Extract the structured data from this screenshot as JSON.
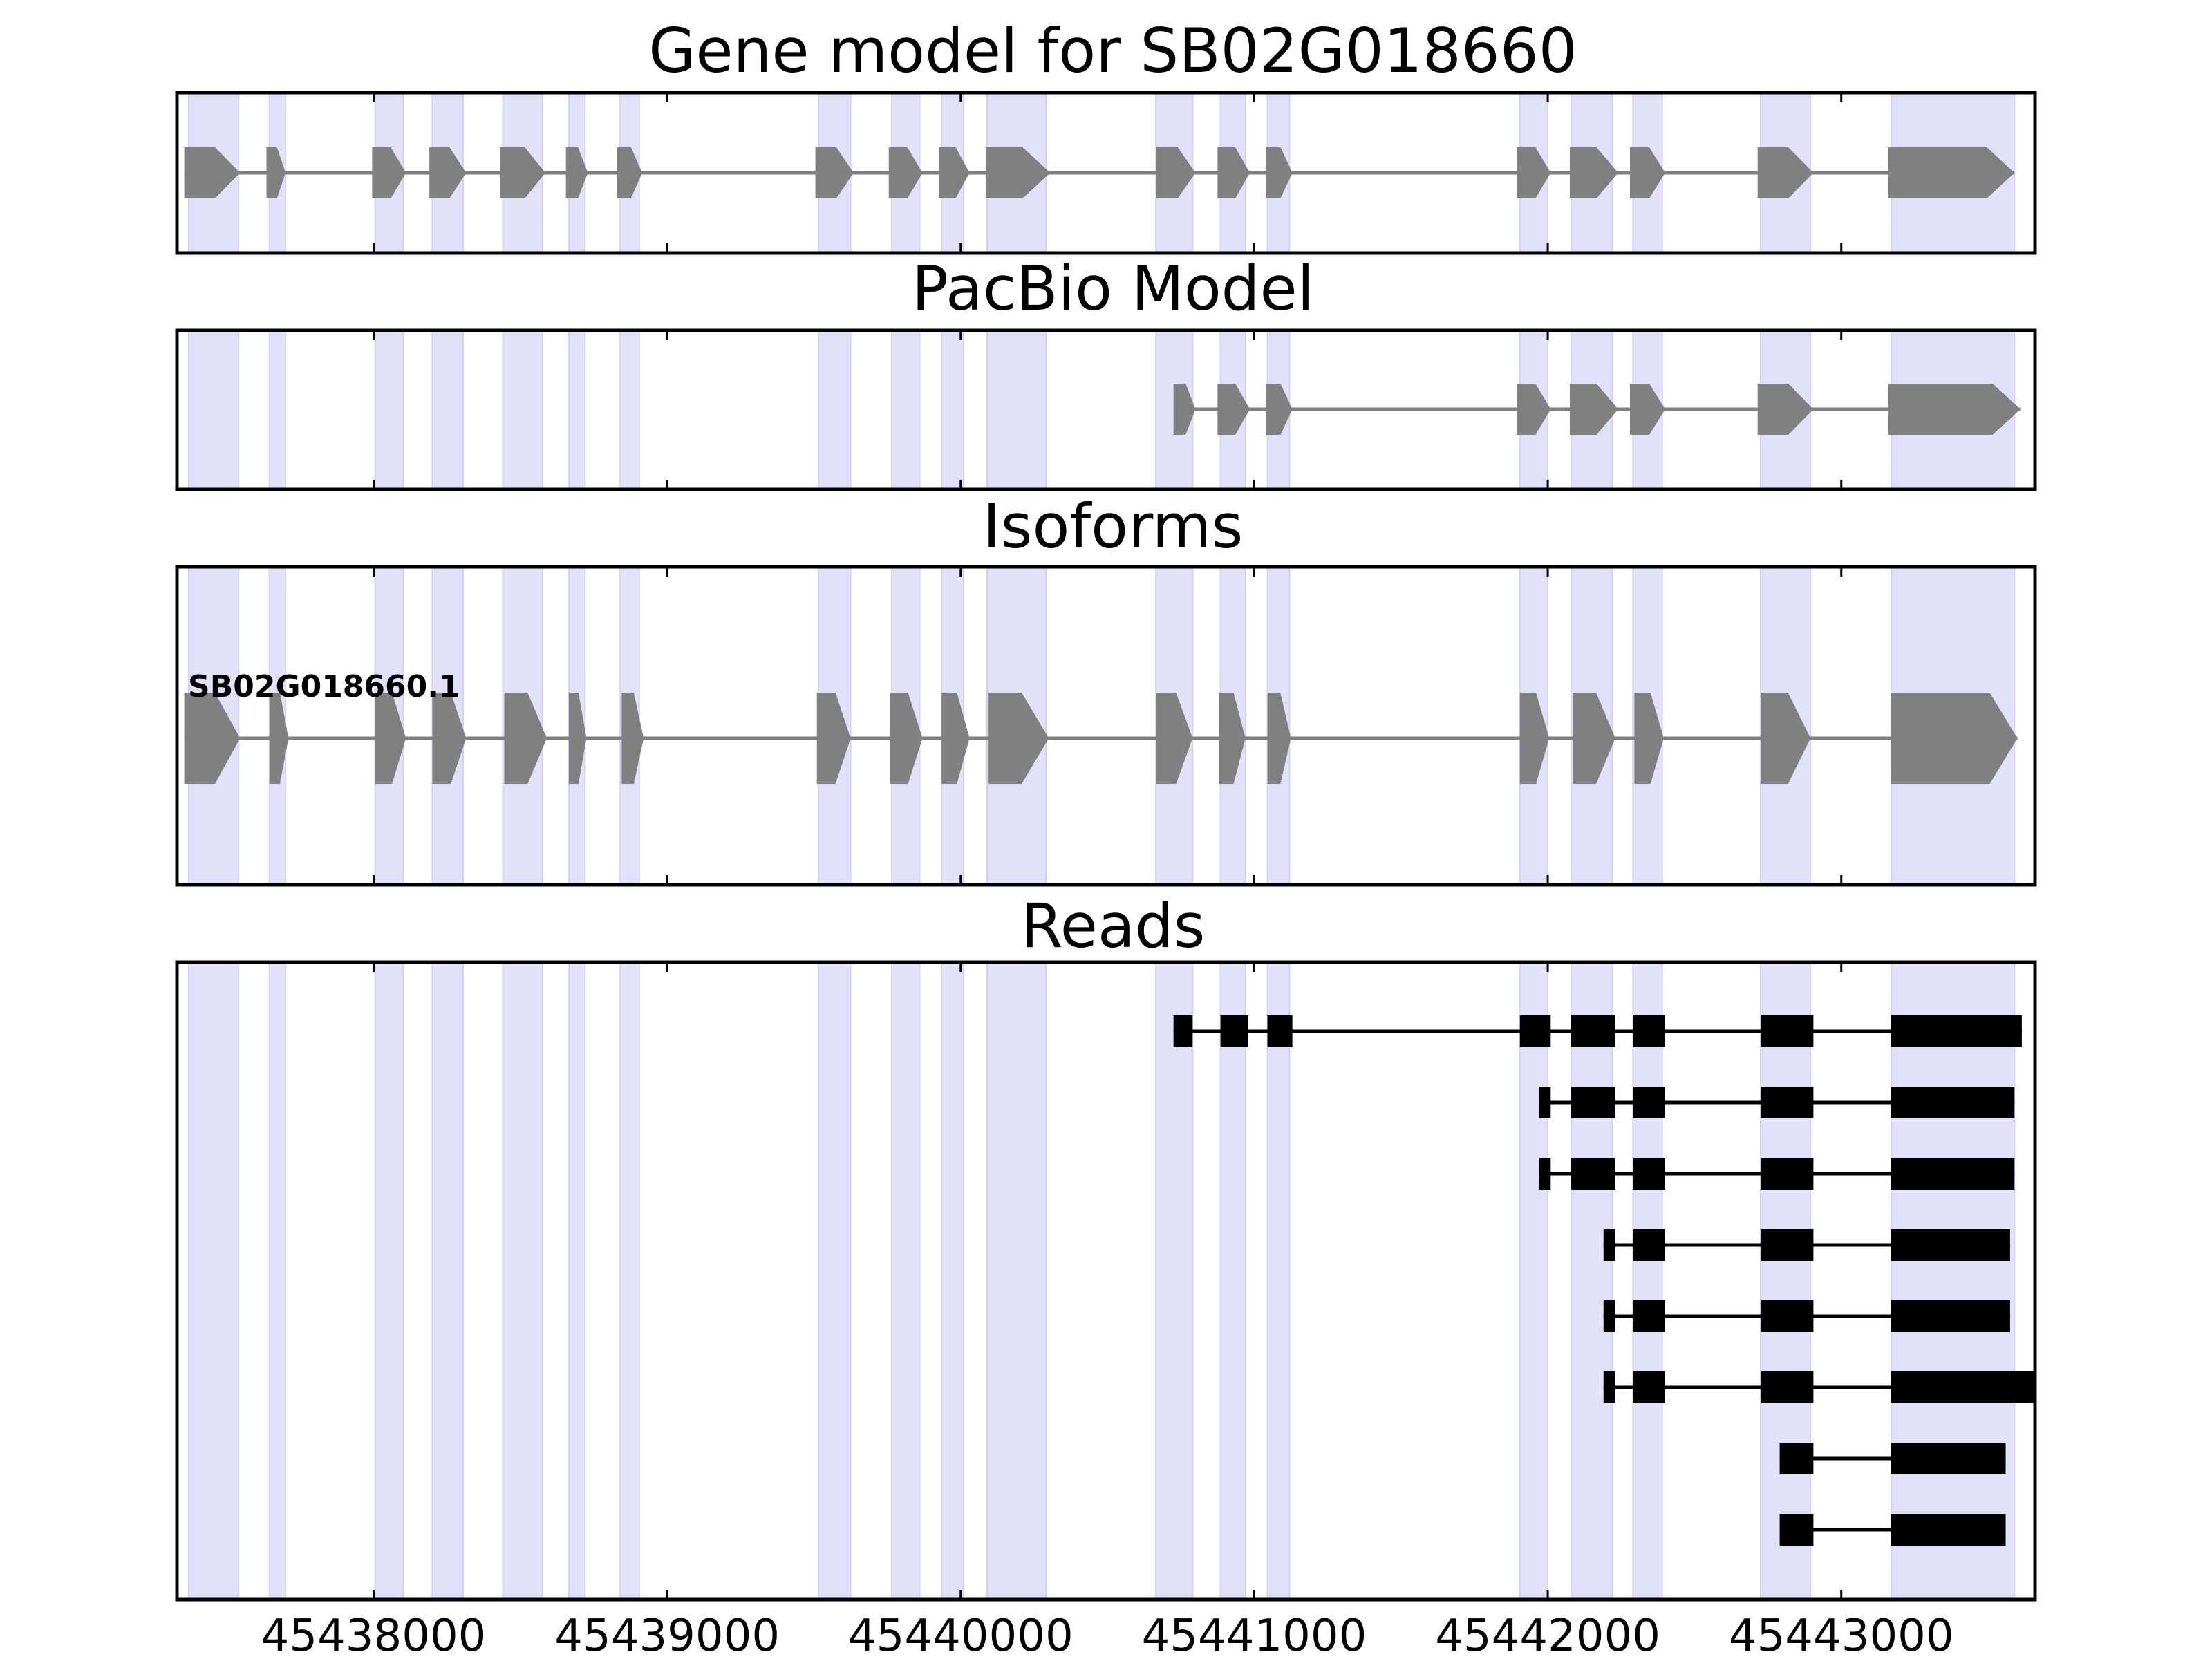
{
  "figure": {
    "title": "Gene model for SB02G018660",
    "xlim": [
      45437330,
      45443660
    ],
    "x_ticks": [
      45438000,
      45439000,
      45440000,
      45441000,
      45442000,
      45443000
    ],
    "x_tick_labels": [
      "45438000",
      "45439000",
      "45440000",
      "45441000",
      "45442000",
      "45443000"
    ],
    "colors": {
      "exon_band": "#e1e1fa",
      "model_gray": "#808080",
      "read_black": "#000000",
      "axis": "#000000"
    }
  },
  "panels": [
    {
      "key": "gene_model",
      "title": "Gene model for SB02G018660"
    },
    {
      "key": "pacbio",
      "title": "PacBio Model"
    },
    {
      "key": "isoforms",
      "title": "Isoforms"
    },
    {
      "key": "reads",
      "title": "Reads"
    }
  ],
  "isoform_label": "SB02G018660.1",
  "chart_data": {
    "type": "gene-track",
    "title": "Gene model for SB02G018660",
    "xlabel": "",
    "x_ticks": [
      45438000,
      45439000,
      45440000,
      45441000,
      45442000,
      45443000
    ],
    "exon_bands": [
      [
        45437370,
        45437540
      ],
      [
        45437645,
        45437700
      ],
      [
        45438005,
        45438100
      ],
      [
        45438200,
        45438305
      ],
      [
        45438440,
        45438575
      ],
      [
        45438665,
        45438720
      ],
      [
        45438840,
        45438905
      ],
      [
        45439515,
        45439625
      ],
      [
        45439765,
        45439860
      ],
      [
        45439935,
        45440010
      ],
      [
        45440090,
        45440290
      ],
      [
        45440665,
        45440790
      ],
      [
        45440885,
        45440970
      ],
      [
        45441045,
        45441120
      ],
      [
        45441905,
        45442000
      ],
      [
        45442080,
        45442220
      ],
      [
        45442290,
        45442390
      ],
      [
        45442725,
        45442895
      ],
      [
        45443170,
        45443590
      ]
    ],
    "gene_model_exons": [
      [
        45437355,
        45437545
      ],
      [
        45437635,
        45437700
      ],
      [
        45437995,
        45438110
      ],
      [
        45438190,
        45438315
      ],
      [
        45438430,
        45438585
      ],
      [
        45438655,
        45438730
      ],
      [
        45438830,
        45438915
      ],
      [
        45439505,
        45439635
      ],
      [
        45439755,
        45439870
      ],
      [
        45439925,
        45440030
      ],
      [
        45440085,
        45440305
      ],
      [
        45440665,
        45440800
      ],
      [
        45440875,
        45440985
      ],
      [
        45441040,
        45441130
      ],
      [
        45441895,
        45442010
      ],
      [
        45442075,
        45442240
      ],
      [
        45442280,
        45442400
      ],
      [
        45442715,
        45442905
      ],
      [
        45443160,
        45443590
      ]
    ],
    "pacbio_exons": [
      [
        45440725,
        45440800
      ],
      [
        45440875,
        45440985
      ],
      [
        45441040,
        45441130
      ],
      [
        45441895,
        45442010
      ],
      [
        45442075,
        45442240
      ],
      [
        45442280,
        45442400
      ],
      [
        45442715,
        45442905
      ],
      [
        45443160,
        45443610
      ]
    ],
    "isoforms": [
      {
        "name": "SB02G018660.1",
        "exons": [
          [
            45437355,
            45437545
          ],
          [
            45437645,
            45437710
          ],
          [
            45438005,
            45438110
          ],
          [
            45438200,
            45438315
          ],
          [
            45438445,
            45438590
          ],
          [
            45438665,
            45438725
          ],
          [
            45438845,
            45438920
          ],
          [
            45439510,
            45439625
          ],
          [
            45439760,
            45439870
          ],
          [
            45439935,
            45440030
          ],
          [
            45440095,
            45440300
          ],
          [
            45440665,
            45440790
          ],
          [
            45440880,
            45440970
          ],
          [
            45441045,
            45441125
          ],
          [
            45441905,
            45442005
          ],
          [
            45442085,
            45442230
          ],
          [
            45442295,
            45442395
          ],
          [
            45442725,
            45442895
          ],
          [
            45443170,
            45443600
          ]
        ]
      }
    ],
    "reads": [
      [
        [
          45440725,
          45440790
        ],
        [
          45440885,
          45440980
        ],
        [
          45441045,
          45441130
        ],
        [
          45441905,
          45442010
        ],
        [
          45442080,
          45442230
        ],
        [
          45442290,
          45442400
        ],
        [
          45442725,
          45442905
        ],
        [
          45443170,
          45443615
        ]
      ],
      [
        [
          45441970,
          45442010
        ],
        [
          45442080,
          45442230
        ],
        [
          45442290,
          45442400
        ],
        [
          45442725,
          45442905
        ],
        [
          45443170,
          45443590
        ]
      ],
      [
        [
          45441970,
          45442010
        ],
        [
          45442080,
          45442230
        ],
        [
          45442290,
          45442400
        ],
        [
          45442725,
          45442905
        ],
        [
          45443170,
          45443590
        ]
      ],
      [
        [
          45442190,
          45442230
        ],
        [
          45442290,
          45442400
        ],
        [
          45442725,
          45442905
        ],
        [
          45443170,
          45443575
        ]
      ],
      [
        [
          45442190,
          45442230
        ],
        [
          45442290,
          45442400
        ],
        [
          45442725,
          45442905
        ],
        [
          45443170,
          45443575
        ]
      ],
      [
        [
          45442190,
          45442230
        ],
        [
          45442290,
          45442400
        ],
        [
          45442725,
          45442905
        ],
        [
          45443170,
          45443660
        ]
      ],
      [
        [
          45442790,
          45442905
        ],
        [
          45443170,
          45443560
        ]
      ],
      [
        [
          45442790,
          45442905
        ],
        [
          45443170,
          45443560
        ]
      ]
    ]
  }
}
